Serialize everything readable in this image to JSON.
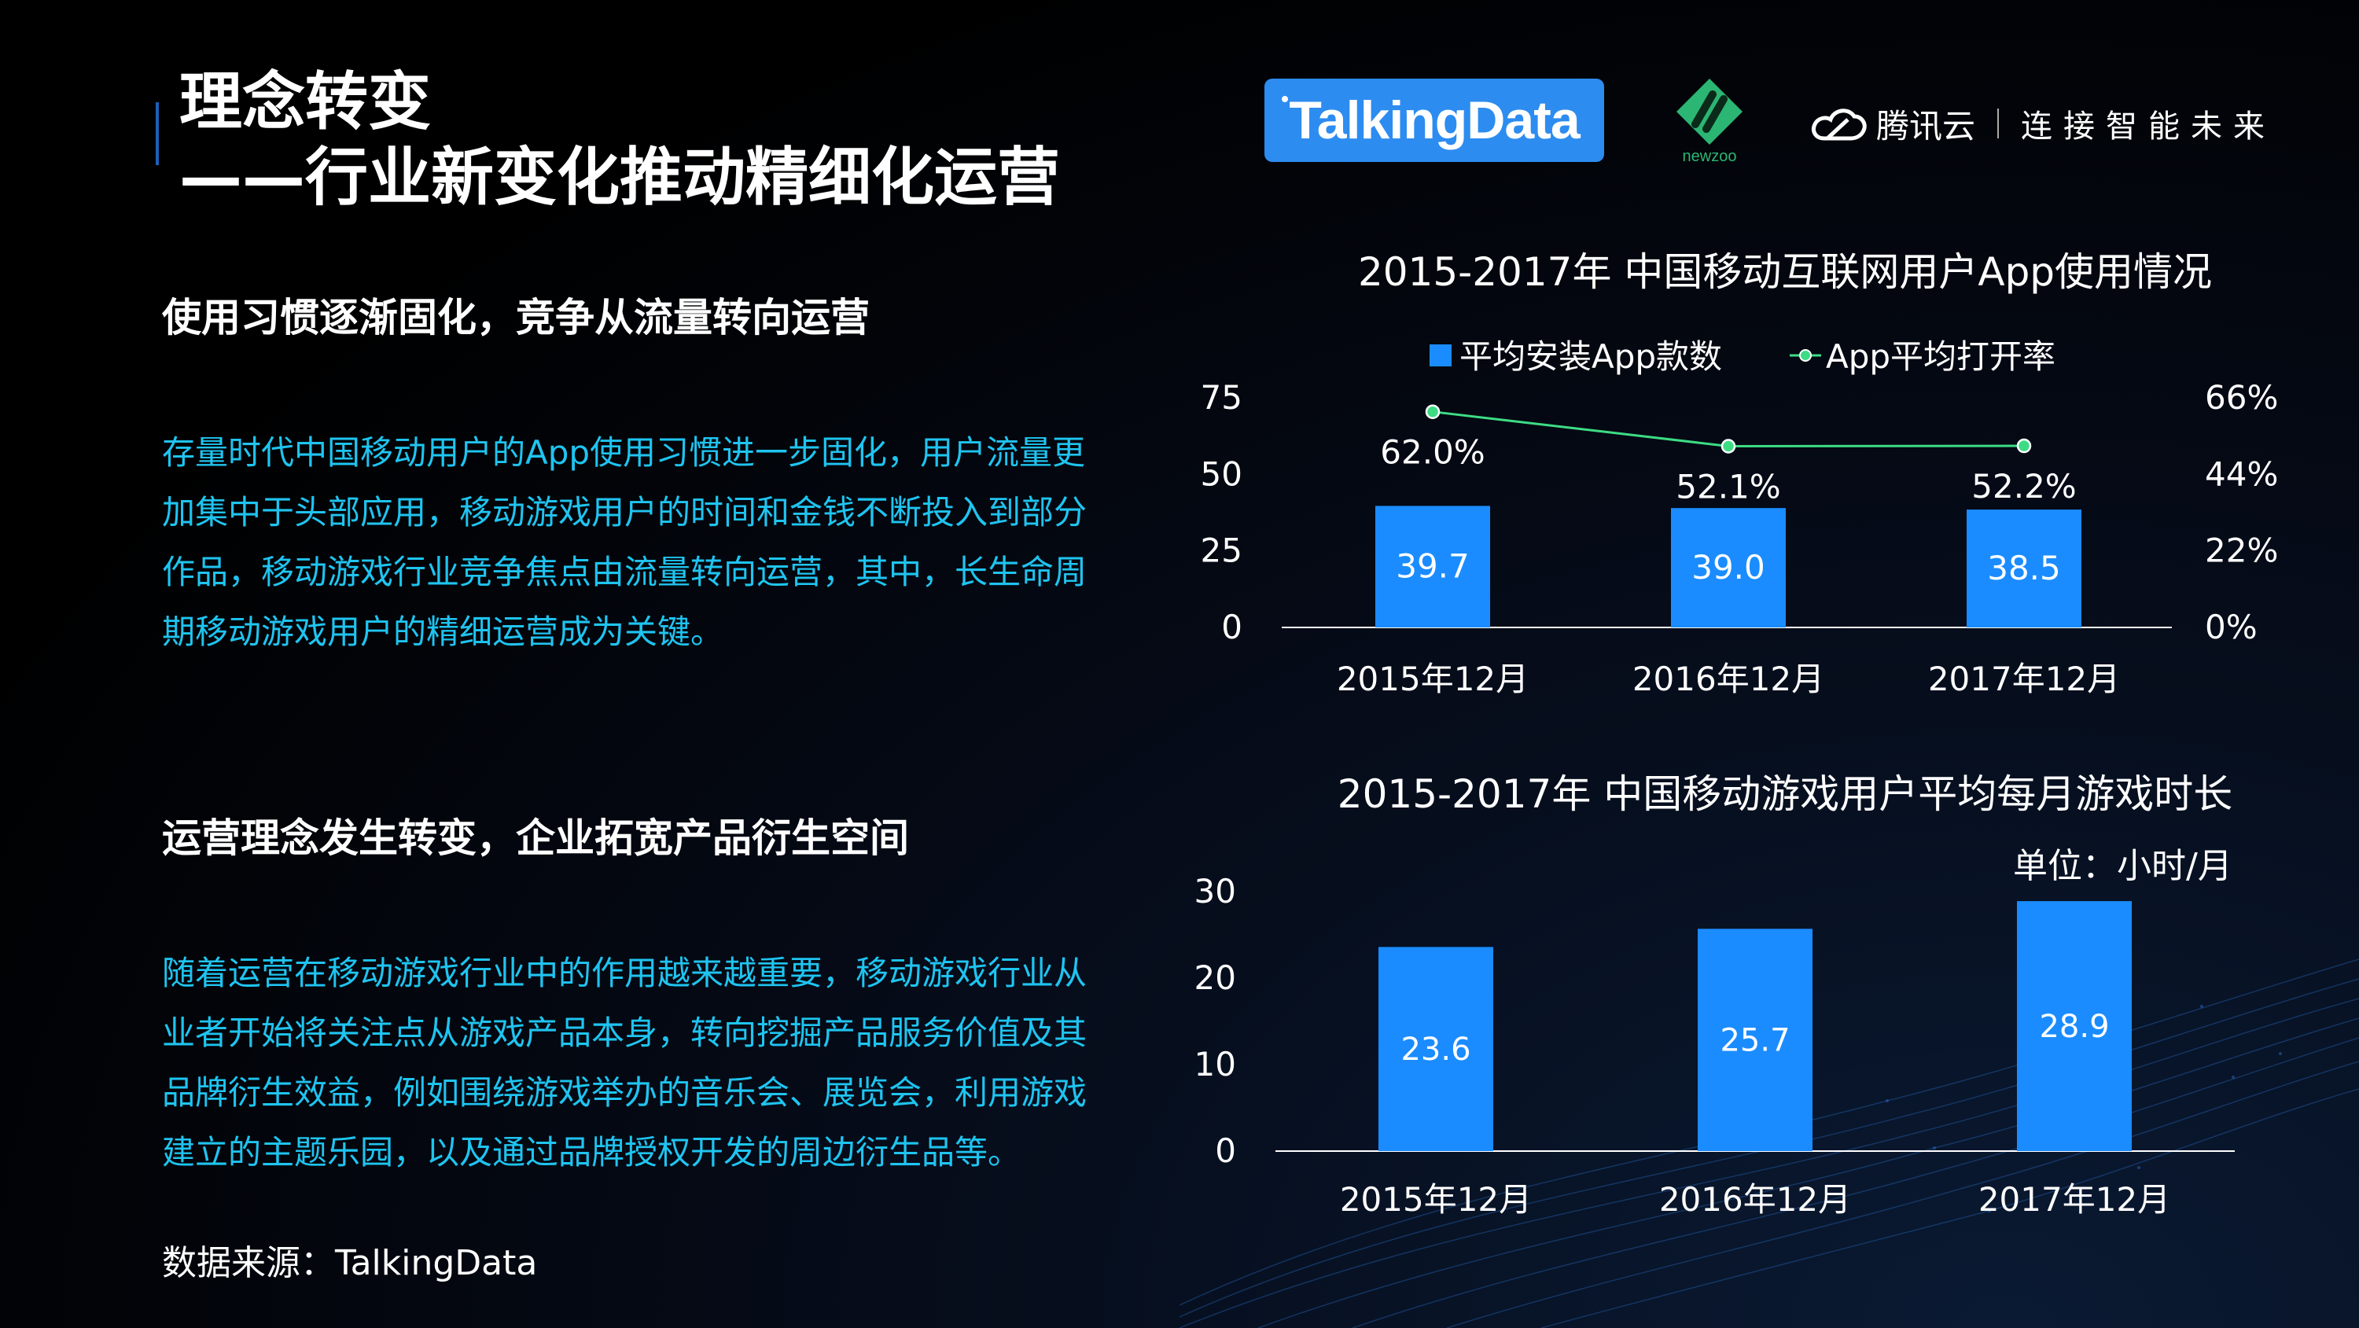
{
  "header": {
    "title_line1": "理念转变",
    "title_line2": "——行业新变化推动精细化运营"
  },
  "logos": {
    "talkingdata": "TalkingData",
    "newzoo": "newzoo",
    "tencent_cloud": "腾讯云",
    "tencent_slogan": "连接智能未来"
  },
  "section1": {
    "heading": "使用习惯逐渐固化，竞争从流量转向运营",
    "body": "存量时代中国移动用户的App使用习惯进一步固化，用户流量更加集中于头部应用，移动游戏用户的时间和金钱不断投入到部分作品，移动游戏行业竞争焦点由流量转向运营，其中，长生命周期移动游戏用户的精细运营成为关键。"
  },
  "section2": {
    "heading": "运营理念发生转变，企业拓宽产品衍生空间",
    "body": "随着运营在移动游戏行业中的作用越来越重要，移动游戏行业从业者开始将关注点从游戏产品本身，转向挖掘产品服务价值及其品牌衍生效益，例如围绕游戏举办的音乐会、展览会，利用游戏建立的主题乐园，以及通过品牌授权开发的周边衍生品等。"
  },
  "source": "数据来源：TalkingData",
  "colors": {
    "bar": "#1a8cff",
    "line": "#3ddc84",
    "body_text": "#1fc4f0"
  },
  "chart_data": [
    {
      "type": "bar",
      "title": "2015-2017年 中国移动互联网用户App使用情况",
      "categories": [
        "2015年12月",
        "2016年12月",
        "2017年12月"
      ],
      "series": [
        {
          "name": "平均安装App款数",
          "type": "bar",
          "axis": "left",
          "values": [
            39.7,
            39.0,
            38.5
          ],
          "labels": [
            "39.7",
            "39.0",
            "38.5"
          ]
        },
        {
          "name": "App平均打开率",
          "type": "line",
          "axis": "right",
          "values": [
            62.0,
            52.1,
            52.2
          ],
          "labels": [
            "62.0%",
            "52.1%",
            "52.2%"
          ]
        }
      ],
      "y_left": {
        "ticks": [
          "0",
          "25",
          "50",
          "75"
        ],
        "range": [
          0,
          75
        ]
      },
      "y_right": {
        "ticks": [
          "0%",
          "22%",
          "44%",
          "66%"
        ],
        "range": [
          0,
          66
        ]
      },
      "legend_position": "top-center",
      "grid": false
    },
    {
      "type": "bar",
      "title": "2015-2017年  中国移动游戏用户平均每月游戏时长",
      "unit": "单位：小时/月",
      "categories": [
        "2015年12月",
        "2016年12月",
        "2017年12月"
      ],
      "values": [
        23.6,
        25.7,
        28.9
      ],
      "labels": [
        "23.6",
        "25.7",
        "28.9"
      ],
      "y": {
        "ticks": [
          "0",
          "10",
          "20",
          "30"
        ],
        "range": [
          0,
          30
        ]
      },
      "grid": false
    }
  ]
}
